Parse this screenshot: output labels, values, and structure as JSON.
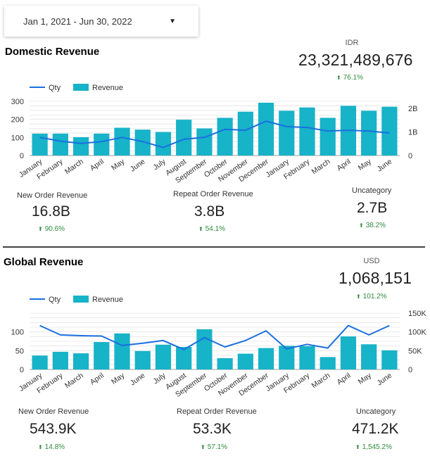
{
  "date_range": {
    "label": "Jan 1, 2021 - Jun 30, 2022"
  },
  "colors": {
    "bar": "#17b3c8",
    "line": "#1a6fe0",
    "positive": "#2e8b3a",
    "grid": "#d9d9d9"
  },
  "domestic": {
    "title": "Domestic Revenue",
    "currency": "IDR",
    "total": "23,321,489,676",
    "total_change": "76.1%",
    "kpis": [
      {
        "label": "New Order Revenue",
        "value": "16.8B",
        "change": "90.6%"
      },
      {
        "label": "Repeat Order Revenue",
        "value": "3.8B",
        "change": "54.1%"
      },
      {
        "label": "Uncategory",
        "value": "2.7B",
        "change": "38.2%"
      }
    ]
  },
  "global": {
    "title": "Global Revenue",
    "currency": "USD",
    "total": "1,068,151",
    "total_change": "101.2%",
    "kpis": [
      {
        "label": "New Order Revenue",
        "value": "543.9K",
        "change": "14.8%"
      },
      {
        "label": "Repeat Order Revenue",
        "value": "53.3K",
        "change": "57.1%"
      },
      {
        "label": "Uncategory",
        "value": "471.2K",
        "change": "1,545.2%"
      }
    ]
  },
  "chart_data": [
    {
      "type": "bar",
      "title": "Domestic Revenue",
      "categories": [
        "January",
        "February",
        "March",
        "April",
        "May",
        "June",
        "July",
        "August",
        "September",
        "October",
        "November",
        "December",
        "January",
        "February",
        "March",
        "April",
        "May",
        "June"
      ],
      "legend": [
        "Qty",
        "Revenue"
      ],
      "series": [
        {
          "name": "Revenue",
          "kind": "bar",
          "axis": "right",
          "values": [
            0.93,
            0.93,
            0.78,
            0.93,
            1.18,
            1.1,
            1.0,
            1.52,
            1.15,
            1.6,
            1.86,
            2.24,
            1.9,
            2.04,
            1.6,
            2.11,
            1.9,
            2.07
          ]
        },
        {
          "name": "Qty",
          "kind": "line",
          "axis": "left",
          "values": [
            100,
            80,
            67,
            77,
            100,
            77,
            45,
            90,
            100,
            145,
            140,
            190,
            160,
            155,
            135,
            140,
            135,
            125
          ]
        }
      ],
      "y_left": {
        "ylim": [
          0,
          300
        ],
        "ticks": [
          "0",
          "100",
          "200",
          "300"
        ],
        "tick_values": [
          0,
          100,
          200,
          300
        ]
      },
      "y_right": {
        "ylim": [
          0,
          2.3
        ],
        "ticks": [
          "0",
          "1B",
          "2B"
        ],
        "tick_values": [
          0,
          1,
          2
        ]
      }
    },
    {
      "type": "bar",
      "title": "Global Revenue",
      "categories": [
        "January",
        "February",
        "March",
        "April",
        "May",
        "June",
        "July",
        "August",
        "September",
        "October",
        "November",
        "December",
        "January",
        "February",
        "March",
        "April",
        "May",
        "June"
      ],
      "legend": [
        "Qty",
        "Revenue"
      ],
      "series": [
        {
          "name": "Revenue",
          "kind": "bar",
          "axis": "right",
          "values": [
            37,
            47,
            43,
            73,
            96,
            49,
            66,
            60,
            107,
            30,
            42,
            57,
            63,
            62,
            33,
            88,
            67,
            51
          ]
        },
        {
          "name": "Qty",
          "kind": "line",
          "axis": "left",
          "values": [
            117,
            92,
            90,
            89,
            64,
            70,
            77,
            53,
            85,
            60,
            77,
            103,
            55,
            67,
            57,
            117,
            92,
            117
          ]
        }
      ],
      "y_left": {
        "ylim": [
          0,
          150
        ],
        "ticks": [
          "0",
          "50",
          "100"
        ],
        "tick_values": [
          0,
          50,
          100
        ]
      },
      "y_right": {
        "ylim": [
          0,
          150
        ],
        "ticks": [
          "0",
          "50K",
          "100K",
          "150K"
        ],
        "tick_values": [
          0,
          50,
          100,
          150
        ]
      }
    }
  ]
}
